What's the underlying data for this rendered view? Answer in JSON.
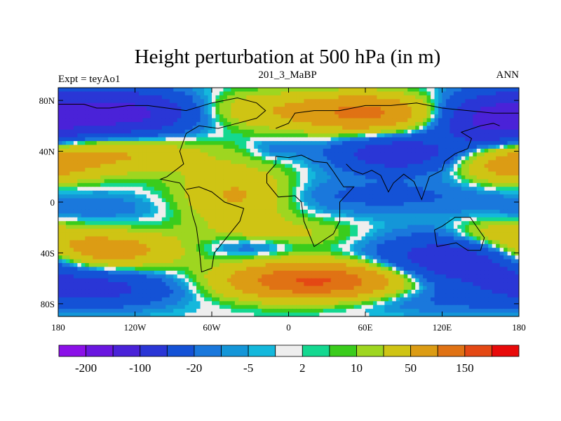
{
  "chart_data": {
    "type": "heatmap",
    "title": "Height perturbation at 500 hPa (in m)",
    "left_string": "Expt = teyAo1",
    "center_string": "201_3_MaBP",
    "right_string": "ANN",
    "x_ticks": [
      {
        "value": -180,
        "label": "180"
      },
      {
        "value": -120,
        "label": "120W"
      },
      {
        "value": -60,
        "label": "60W"
      },
      {
        "value": 0,
        "label": "0"
      },
      {
        "value": 60,
        "label": "60E"
      },
      {
        "value": 120,
        "label": "120E"
      },
      {
        "value": 180,
        "label": "180"
      }
    ],
    "y_ticks": [
      {
        "value": 80,
        "label": "80N"
      },
      {
        "value": 40,
        "label": "40N"
      },
      {
        "value": 0,
        "label": "0"
      },
      {
        "value": -40,
        "label": "40S"
      },
      {
        "value": -80,
        "label": "80S"
      }
    ],
    "xlim": [
      -180,
      180
    ],
    "ylim": [
      -90,
      90
    ],
    "colorbar": {
      "colors": [
        "#8b10e8",
        "#6a16e0",
        "#4a22d8",
        "#2a36d6",
        "#1452d6",
        "#1a78dc",
        "#1496d8",
        "#14b8dc",
        "#eeeeee",
        "#14d890",
        "#3acc1c",
        "#9ed620",
        "#cfc414",
        "#dc9c14",
        "#e07214",
        "#e44814",
        "#e80a0a"
      ],
      "labels": [
        {
          "boundary": 1,
          "text": "-200"
        },
        {
          "boundary": 3,
          "text": "-100"
        },
        {
          "boundary": 5,
          "text": "-20"
        },
        {
          "boundary": 7,
          "text": "-5"
        },
        {
          "boundary": 9,
          "text": "2"
        },
        {
          "boundary": 11,
          "text": "10"
        },
        {
          "boundary": 13,
          "text": "50"
        },
        {
          "boundary": 15,
          "text": "150"
        }
      ]
    },
    "field_blobs": [
      {
        "lon": -130,
        "lat": 70,
        "amp": -120,
        "sx": 40,
        "sy": 12
      },
      {
        "lon": 160,
        "lat": 65,
        "amp": -110,
        "sx": 30,
        "sy": 14
      },
      {
        "lon": 85,
        "lat": 38,
        "amp": -80,
        "sx": 35,
        "sy": 10
      },
      {
        "lon": 70,
        "lat": 5,
        "amp": -25,
        "sx": 70,
        "sy": 10
      },
      {
        "lon": -150,
        "lat": -5,
        "amp": -15,
        "sx": 40,
        "sy": 8
      },
      {
        "lon": 135,
        "lat": -45,
        "amp": -90,
        "sx": 45,
        "sy": 14
      },
      {
        "lon": -150,
        "lat": -68,
        "amp": -60,
        "sx": 45,
        "sy": 10
      },
      {
        "lon": -30,
        "lat": -35,
        "amp": -25,
        "sx": 25,
        "sy": 6
      },
      {
        "lon": 100,
        "lat": -78,
        "amp": -18,
        "sx": 60,
        "sy": 7
      },
      {
        "lon": -10,
        "lat": 42,
        "amp": -15,
        "sx": 15,
        "sy": 6
      },
      {
        "lon": 60,
        "lat": 70,
        "amp": 110,
        "sx": 35,
        "sy": 10
      },
      {
        "lon": -20,
        "lat": 72,
        "amp": 40,
        "sx": 40,
        "sy": 10
      },
      {
        "lon": -40,
        "lat": 5,
        "amp": 60,
        "sx": 30,
        "sy": 15
      },
      {
        "lon": -140,
        "lat": 37,
        "amp": 55,
        "sx": 50,
        "sy": 10
      },
      {
        "lon": 170,
        "lat": 28,
        "amp": 55,
        "sx": 25,
        "sy": 10
      },
      {
        "lon": -150,
        "lat": -38,
        "amp": 90,
        "sx": 40,
        "sy": 10
      },
      {
        "lon": 20,
        "lat": -62,
        "amp": 160,
        "sx": 45,
        "sy": 10
      },
      {
        "lon": 160,
        "lat": -25,
        "amp": 40,
        "sx": 25,
        "sy": 8
      },
      {
        "lon": -5,
        "lat": -25,
        "amp": 25,
        "sx": 40,
        "sy": 8
      }
    ],
    "coastlines": [
      [
        [
          -180,
          77
        ],
        [
          -160,
          77
        ],
        [
          -150,
          74
        ],
        [
          -140,
          74
        ],
        [
          -125,
          76
        ],
        [
          -110,
          76
        ],
        [
          -95,
          74
        ],
        [
          -80,
          72
        ],
        [
          -70,
          75
        ],
        [
          -60,
          78
        ],
        [
          -40,
          82
        ],
        [
          -25,
          78
        ],
        [
          -18,
          72
        ],
        [
          -25,
          66
        ],
        [
          -40,
          62
        ],
        [
          -55,
          58
        ],
        [
          -70,
          60
        ],
        [
          -80,
          54
        ],
        [
          -85,
          40
        ],
        [
          -82,
          30
        ],
        [
          -95,
          20
        ],
        [
          -100,
          18
        ],
        [
          -85,
          15
        ],
        [
          -80,
          8
        ],
        [
          -78,
          5
        ],
        [
          -75,
          -10
        ],
        [
          -72,
          -20
        ],
        [
          -70,
          -35
        ],
        [
          -68,
          -55
        ],
        [
          -60,
          -52
        ],
        [
          -58,
          -40
        ],
        [
          -50,
          -30
        ],
        [
          -38,
          -15
        ],
        [
          -35,
          -5
        ],
        [
          -50,
          0
        ],
        [
          -60,
          8
        ],
        [
          -70,
          12
        ],
        [
          -80,
          10
        ]
      ],
      [
        [
          -10,
          58
        ],
        [
          0,
          62
        ],
        [
          5,
          70
        ],
        [
          20,
          72
        ],
        [
          40,
          72
        ],
        [
          60,
          76
        ],
        [
          80,
          76
        ],
        [
          100,
          78
        ],
        [
          120,
          74
        ],
        [
          140,
          72
        ],
        [
          160,
          70
        ],
        [
          180,
          70
        ]
      ],
      [
        [
          -10,
          36
        ],
        [
          0,
          35
        ],
        [
          10,
          37
        ],
        [
          20,
          32
        ],
        [
          30,
          31
        ],
        [
          35,
          24
        ],
        [
          43,
          12
        ],
        [
          51,
          12
        ],
        [
          40,
          0
        ],
        [
          40,
          -15
        ],
        [
          35,
          -25
        ],
        [
          20,
          -35
        ],
        [
          18,
          -30
        ],
        [
          12,
          -15
        ],
        [
          10,
          0
        ],
        [
          5,
          5
        ],
        [
          -8,
          4
        ],
        [
          -17,
          15
        ],
        [
          -17,
          22
        ],
        [
          -10,
          30
        ],
        [
          -10,
          36
        ]
      ],
      [
        [
          45,
          30
        ],
        [
          50,
          25
        ],
        [
          58,
          22
        ],
        [
          65,
          25
        ],
        [
          72,
          21
        ],
        [
          78,
          8
        ],
        [
          82,
          15
        ],
        [
          90,
          22
        ],
        [
          98,
          16
        ],
        [
          104,
          2
        ],
        [
          110,
          20
        ],
        [
          120,
          25
        ],
        [
          122,
          32
        ],
        [
          130,
          38
        ],
        [
          140,
          42
        ],
        [
          143,
          50
        ],
        [
          135,
          55
        ],
        [
          150,
          60
        ],
        [
          160,
          62
        ],
        [
          165,
          60
        ]
      ],
      [
        [
          114,
          -22
        ],
        [
          120,
          -19
        ],
        [
          130,
          -12
        ],
        [
          136,
          -12
        ],
        [
          142,
          -12
        ],
        [
          146,
          -18
        ],
        [
          153,
          -28
        ],
        [
          150,
          -38
        ],
        [
          140,
          -38
        ],
        [
          131,
          -32
        ],
        [
          116,
          -35
        ],
        [
          114,
          -22
        ]
      ]
    ]
  }
}
